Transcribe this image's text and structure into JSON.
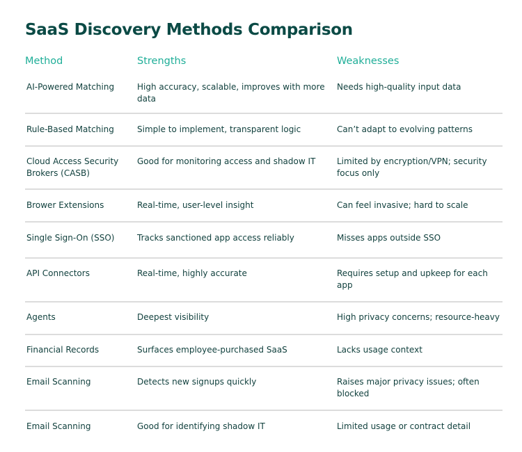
{
  "title": "SaaS Discovery Methods Comparison",
  "headers": {
    "method": "Method",
    "strengths": "Strengths",
    "weaknesses": "Weaknesses"
  },
  "rows": [
    {
      "method": "AI-Powered Matching",
      "strengths": "High accuracy, scalable, improves with more data",
      "weaknesses": "Needs high-quality input data"
    },
    {
      "method": "Rule-Based Matching",
      "strengths": "Simple to implement, transparent logic",
      "weaknesses": "Can’t adapt to evolving patterns"
    },
    {
      "method": "Cloud Access Security Brokers (CASB)",
      "strengths": "Good for monitoring access and shadow IT",
      "weaknesses": "Limited by encryption/VPN; security focus only"
    },
    {
      "method": "Brower Extensions",
      "strengths": "Real-time, user-level insight",
      "weaknesses": "Can feel invasive; hard to scale"
    },
    {
      "method": "Single Sign-On (SSO)",
      "strengths": "Tracks sanctioned app access reliably",
      "weaknesses": "Misses apps outside SSO"
    },
    {
      "method": "API Connectors",
      "strengths": "Real-time, highly accurate",
      "weaknesses": "Requires setup and upkeep for each app"
    },
    {
      "method": "Agents",
      "strengths": "Deepest visibility",
      "weaknesses": "High privacy concerns; resource-heavy"
    },
    {
      "method": "Financial Records",
      "strengths": "Surfaces employee-purchased SaaS",
      "weaknesses": "Lacks usage context"
    },
    {
      "method": "Email Scanning",
      "strengths": "Detects new signups quickly",
      "weaknesses": "Raises major privacy issues; often blocked"
    },
    {
      "method": "Email Scanning",
      "strengths": "Good for identifying shadow IT",
      "weaknesses": "Limited usage or contract detail"
    }
  ]
}
